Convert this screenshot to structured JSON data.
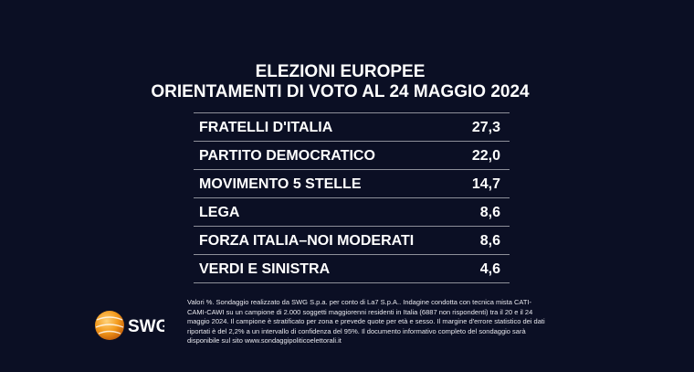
{
  "header": {
    "title": "ELEZIONI EUROPEE",
    "subtitle": "ORIENTAMENTI DI VOTO AL 24 MAGGIO 2024"
  },
  "table": {
    "rows": [
      [
        "FRATELLI D'ITALIA",
        "27,3"
      ],
      [
        "PARTITO DEMOCRATICO",
        "22,0"
      ],
      [
        "MOVIMENTO 5 STELLE",
        "14,7"
      ],
      [
        "LEGA",
        "8,6"
      ],
      [
        "FORZA ITALIA–NOI MODERATI",
        "8,6"
      ],
      [
        "VERDI E SINISTRA",
        "4,6"
      ]
    ]
  },
  "logo": {
    "text": "SWG"
  },
  "footnote": {
    "lines": [
      "Valori %. Sondaggio realizzato da SWG S.p.a. per conto di La7 S.p.A.. Indagine condotta con tecnica mista CATI-",
      "CAMI-CAWI su un campione di 2.000 soggetti maggiorenni residenti in Italia (6887 non rispondenti) tra il 20 e il 24",
      "maggio 2024. Il campione è stratificato per zona e prevede quote per età e sesso. Il margine d'errore statistico dei dati",
      "riportati è del 2,2% a un intervallo di confidenza del 95%. Il documento informativo completo del sondaggio sarà",
      "disponibile sul sito www.sondaggipoliticoelettorali.it"
    ]
  }
}
